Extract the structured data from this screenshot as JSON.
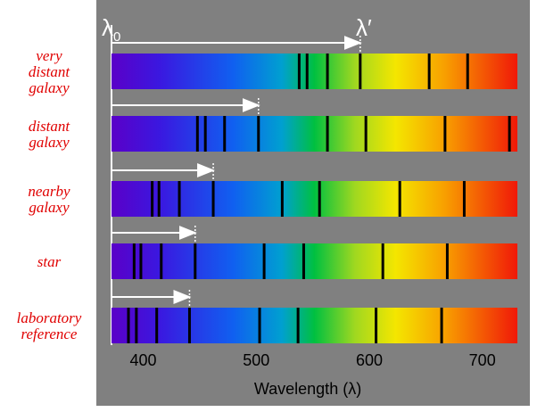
{
  "lambda0": {
    "symbol": "λ",
    "subscript": "0"
  },
  "lambda_prime": "λ′",
  "axis": {
    "title": "Wavelength (λ)",
    "xlim": [
      372,
      731
    ],
    "ticks": [
      400,
      500,
      600,
      700
    ]
  },
  "rows": [
    {
      "label": [
        "very",
        "distant",
        "galaxy"
      ],
      "lines": [
        538,
        545,
        563,
        592,
        653,
        687
      ]
    },
    {
      "label": [
        "distant",
        "galaxy"
      ],
      "lines": [
        448,
        455,
        472,
        502,
        563,
        597,
        667,
        724
      ]
    },
    {
      "label": [
        "nearby",
        "galaxy"
      ],
      "lines": [
        408,
        414,
        432,
        462,
        523,
        556,
        627,
        684
      ]
    },
    {
      "label": [
        "star"
      ],
      "lines": [
        392,
        398,
        416,
        446,
        507,
        542,
        612,
        669
      ]
    },
    {
      "label": [
        "laboratory",
        "reference"
      ],
      "lines": [
        387,
        394,
        412,
        441,
        503,
        537,
        606,
        664
      ]
    }
  ]
}
